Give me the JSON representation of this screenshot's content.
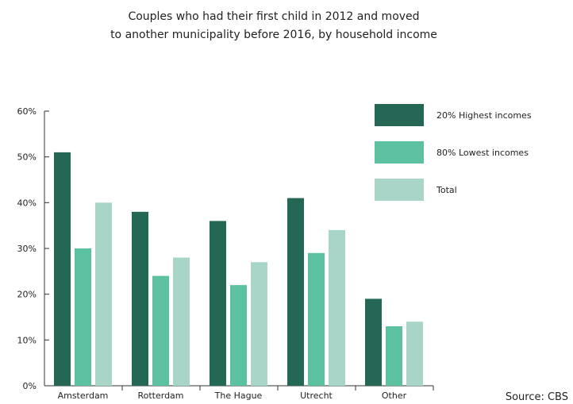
{
  "title_line1": "Couples who had their first child in 2012 and moved",
  "title_line2": "to another municipality before 2016, by household income",
  "source": "Source: CBS",
  "colors": {
    "highest": "#246754",
    "lowest": "#5cc1a1",
    "total": "#a8d5c7",
    "axis": "#333333"
  },
  "chart_data": {
    "type": "bar",
    "title": "Couples who had their first child in 2012 and moved to another municipality before 2016, by household income",
    "categories": [
      "Amsterdam",
      "Rotterdam",
      "The Hague",
      "Utrecht",
      "Other"
    ],
    "series": [
      {
        "name": "20% Highest incomes",
        "values": [
          51,
          38,
          36,
          41,
          19
        ]
      },
      {
        "name": "80% Lowest incomes",
        "values": [
          30,
          24,
          22,
          29,
          13
        ]
      },
      {
        "name": "Total",
        "values": [
          40,
          28,
          27,
          34,
          14
        ]
      }
    ],
    "ylim": [
      0,
      60
    ],
    "yticks": [
      "0%",
      "10%",
      "20%",
      "30%",
      "40%",
      "50%",
      "60%"
    ],
    "xlabel": "",
    "ylabel": "",
    "legend_position": "top-right",
    "grid": false
  }
}
